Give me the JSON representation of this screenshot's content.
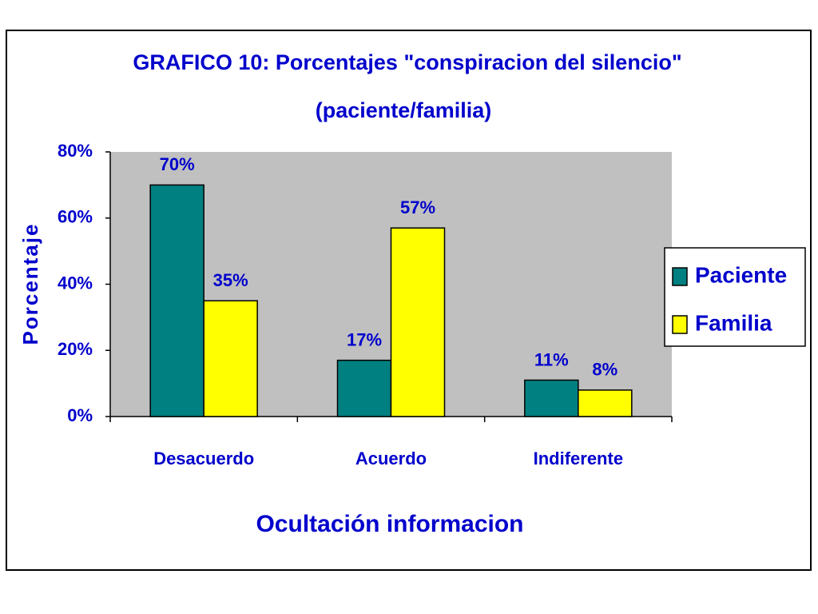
{
  "chart_data": {
    "type": "bar",
    "title_lines": [
      "GRAFICO 10: Porcentajes \"conspiracion del silencio\"",
      "(paciente/familia)"
    ],
    "x_label": "Ocultación informacion",
    "y_label": "Porcentaje",
    "categories": [
      "Desacuerdo",
      "Acuerdo",
      "Indiferente"
    ],
    "series": [
      {
        "name": "Paciente",
        "color": "#008080",
        "values": [
          70,
          17,
          11
        ],
        "value_labels": [
          "70%",
          "17%",
          "11%"
        ]
      },
      {
        "name": "Familia",
        "color": "#ffff00",
        "values": [
          35,
          57,
          8
        ],
        "value_labels": [
          "35%",
          "57%",
          "8%"
        ]
      }
    ],
    "ylim": [
      0,
      80
    ],
    "yticks": [
      {
        "value": 0,
        "label": "0%"
      },
      {
        "value": 20,
        "label": "20%"
      },
      {
        "value": 40,
        "label": "40%"
      },
      {
        "value": 60,
        "label": "60%"
      },
      {
        "value": 80,
        "label": "80%"
      }
    ],
    "legend": "right"
  }
}
